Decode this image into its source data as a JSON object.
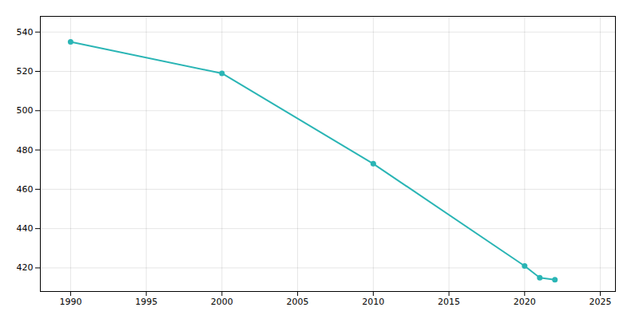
{
  "chart_data": {
    "type": "line",
    "x": [
      1990,
      2000,
      2010,
      2020,
      2021,
      2022
    ],
    "values": [
      535,
      519,
      473,
      421,
      415,
      414
    ],
    "color": "#2ab5b5",
    "marker": "circle",
    "xlim": [
      1988,
      2026
    ],
    "ylim": [
      408,
      548
    ],
    "xticks": [
      1990,
      1995,
      2000,
      2005,
      2010,
      2015,
      2020,
      2025
    ],
    "yticks": [
      420,
      440,
      460,
      480,
      500,
      520,
      540
    ],
    "grid": true
  }
}
